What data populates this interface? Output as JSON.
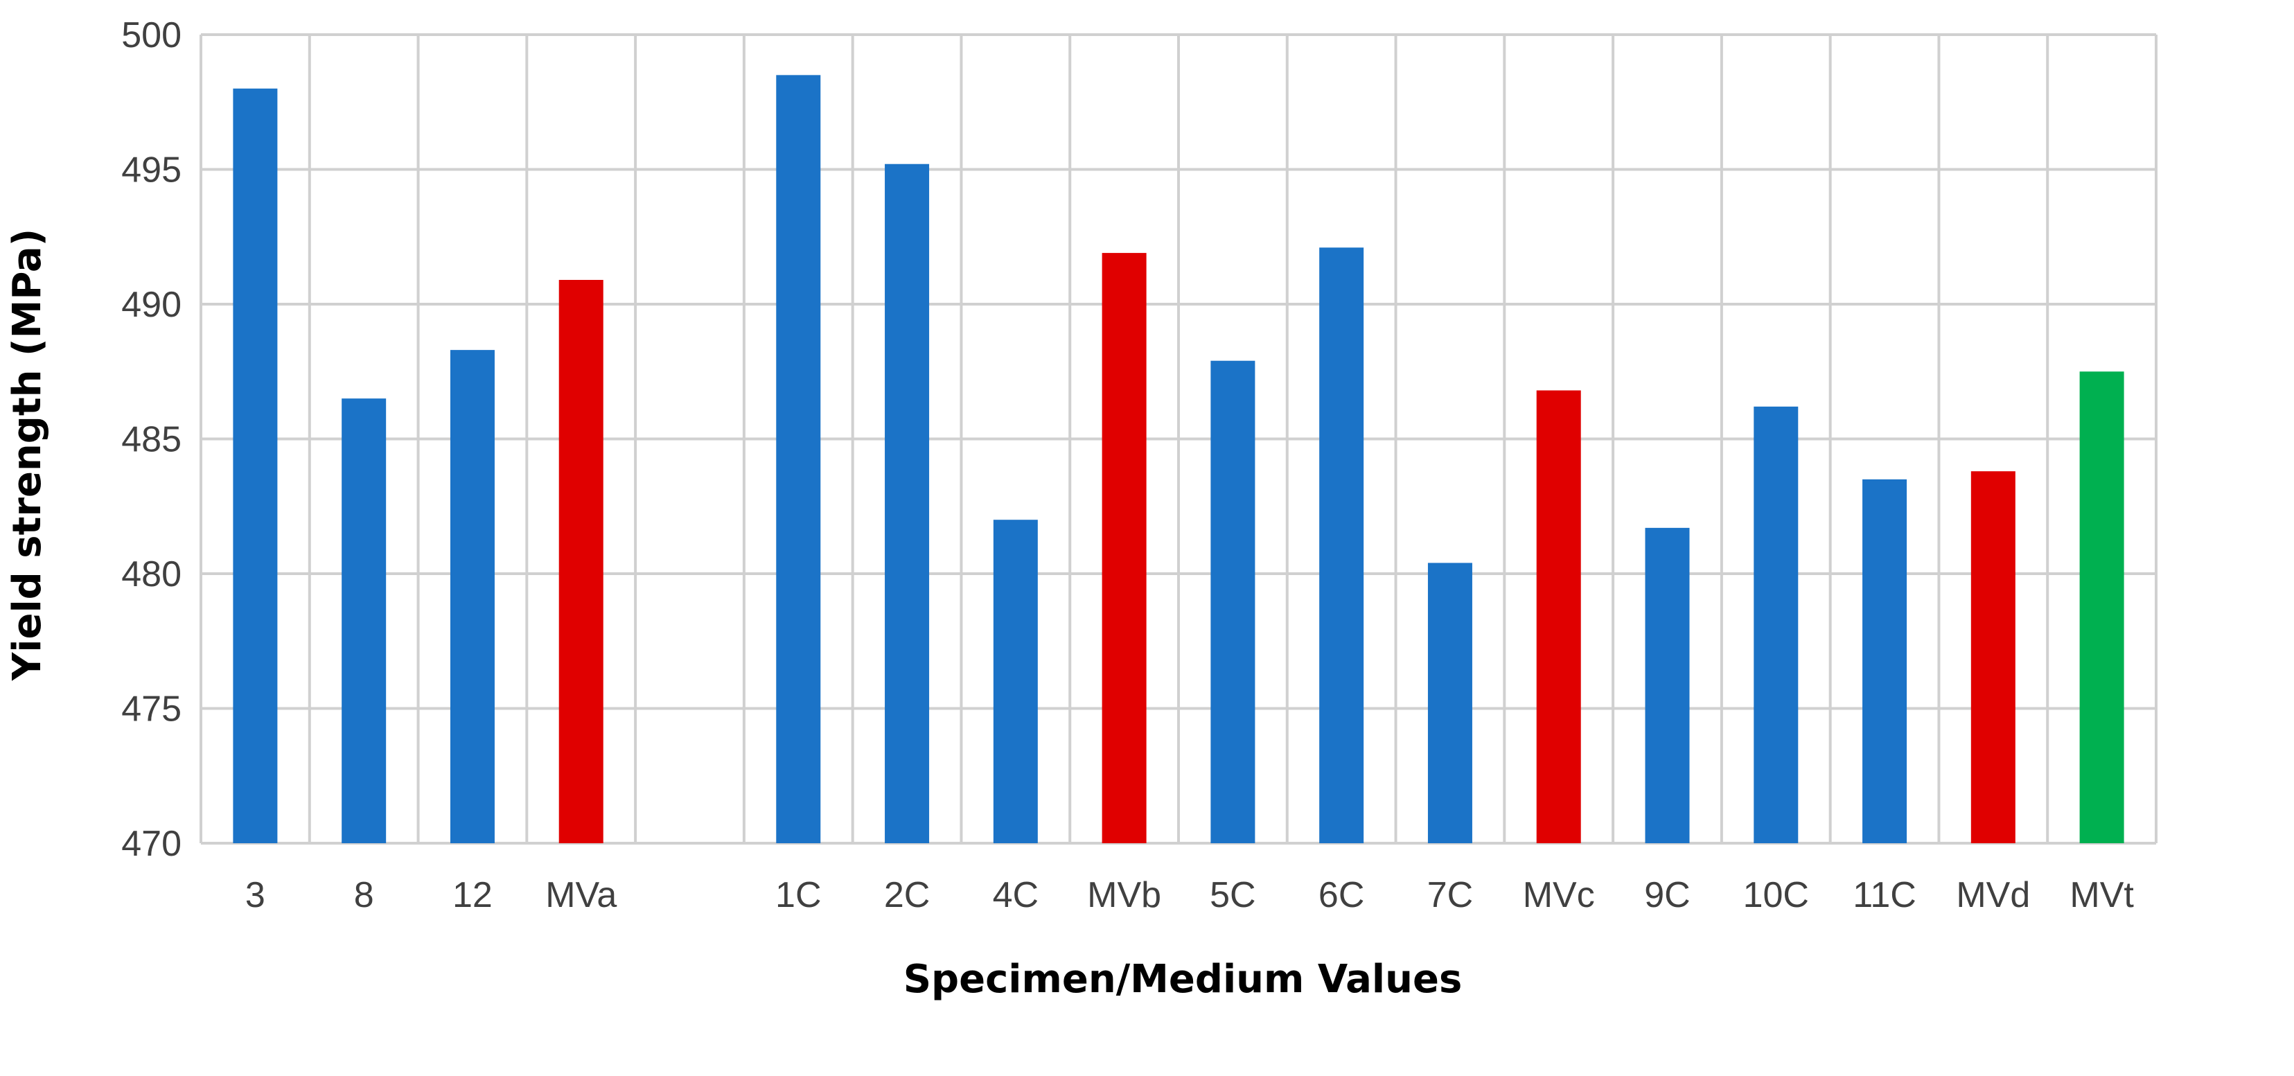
{
  "chart_data": {
    "type": "bar",
    "xlabel": "Specimen/Medium Values",
    "ylabel": "Yield strength (MPa)",
    "ylim": [
      470,
      500
    ],
    "yticks": [
      470,
      475,
      480,
      485,
      490,
      495,
      500
    ],
    "grid": true,
    "legend": "none",
    "colors": {
      "specimen": "#1b73c7",
      "medium": "#e00000",
      "total": "#00b050"
    },
    "categories": [
      "3",
      "8",
      "12",
      "MVa",
      "",
      "1C",
      "2C",
      "4C",
      "MVb",
      "5C",
      "6C",
      "7C",
      "MVc",
      "9C",
      "10C",
      "11C",
      "MVd",
      "MVt"
    ],
    "values": [
      498.0,
      486.5,
      488.3,
      490.9,
      null,
      498.5,
      495.2,
      482.0,
      491.9,
      487.9,
      492.1,
      480.4,
      486.8,
      481.7,
      486.2,
      483.5,
      483.8,
      487.5
    ],
    "bar_kind": [
      "specimen",
      "specimen",
      "specimen",
      "medium",
      "none",
      "specimen",
      "specimen",
      "specimen",
      "medium",
      "specimen",
      "specimen",
      "specimen",
      "medium",
      "specimen",
      "specimen",
      "specimen",
      "medium",
      "total"
    ]
  }
}
